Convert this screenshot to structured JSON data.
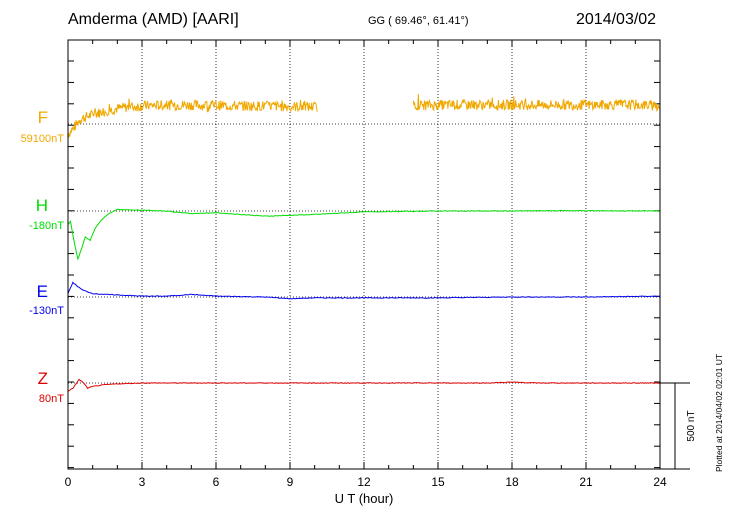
{
  "header": {
    "station": "Amderma (AMD)  [AARI]",
    "coords": "GG ( 69.46°,  61.41°)",
    "date": "2014/03/02"
  },
  "footer": {
    "plotted": "Plotted at 2014/04/02 02:01  UT"
  },
  "chart_data": {
    "type": "line",
    "title": "Amderma (AMD)  [AARI]",
    "xlabel": "U T (hour)",
    "xlim": [
      0,
      24
    ],
    "xticks": [
      0,
      3,
      6,
      9,
      12,
      15,
      18,
      21,
      24
    ],
    "grid": true,
    "scale_bar": {
      "label": "500 nT",
      "value_nT": 500
    },
    "series": [
      {
        "name": "F",
        "baseline": "59100nT",
        "color": "#f0a800",
        "points": [
          [
            0,
            -60
          ],
          [
            0.25,
            -20
          ],
          [
            0.5,
            30
          ],
          [
            1,
            55
          ],
          [
            1.5,
            75
          ],
          [
            2,
            90
          ],
          [
            2.5,
            100
          ],
          [
            3,
            105
          ],
          [
            4,
            110
          ],
          [
            5,
            110
          ],
          [
            6,
            108
          ],
          [
            7,
            105
          ],
          [
            8,
            105
          ],
          [
            9,
            102
          ],
          [
            10,
            100
          ],
          [
            10.1,
            100
          ]
        ],
        "points2": [
          [
            14,
            110
          ],
          [
            15,
            110
          ],
          [
            16,
            112
          ],
          [
            17,
            110
          ],
          [
            18,
            112
          ],
          [
            19,
            110
          ],
          [
            20,
            112
          ],
          [
            21,
            110
          ],
          [
            22,
            112
          ],
          [
            23,
            112
          ],
          [
            24,
            105
          ]
        ],
        "noise_nT": 30,
        "gap": [
          10.1,
          14
        ]
      },
      {
        "name": "H",
        "baseline": "-180nT",
        "color": "#00dd00",
        "points": [
          [
            0,
            -80
          ],
          [
            0.1,
            -60
          ],
          [
            0.25,
            -180
          ],
          [
            0.4,
            -280
          ],
          [
            0.55,
            -220
          ],
          [
            0.7,
            -150
          ],
          [
            0.9,
            -170
          ],
          [
            1.1,
            -100
          ],
          [
            1.3,
            -60
          ],
          [
            1.6,
            -20
          ],
          [
            2,
            10
          ],
          [
            2.5,
            5
          ],
          [
            3,
            5
          ],
          [
            4,
            0
          ],
          [
            5,
            -15
          ],
          [
            6,
            -10
          ],
          [
            7,
            -20
          ],
          [
            8,
            -30
          ],
          [
            9,
            -25
          ],
          [
            10,
            -20
          ],
          [
            12,
            -5
          ],
          [
            15,
            0
          ],
          [
            18,
            0
          ],
          [
            20,
            2
          ],
          [
            24,
            0
          ]
        ]
      },
      {
        "name": "E",
        "baseline": "-130nT",
        "color": "#0000ee",
        "points": [
          [
            0,
            20
          ],
          [
            0.2,
            85
          ],
          [
            0.4,
            60
          ],
          [
            0.6,
            40
          ],
          [
            0.8,
            30
          ],
          [
            1,
            20
          ],
          [
            1.5,
            15
          ],
          [
            2,
            12
          ],
          [
            3,
            5
          ],
          [
            4,
            5
          ],
          [
            5,
            15
          ],
          [
            6,
            5
          ],
          [
            8,
            0
          ],
          [
            9,
            -10
          ],
          [
            10,
            -5
          ],
          [
            12,
            -5
          ],
          [
            15,
            -5
          ],
          [
            18,
            0
          ],
          [
            21,
            0
          ],
          [
            24,
            5
          ]
        ]
      },
      {
        "name": "Z",
        "baseline": "80nT",
        "color": "#dd0000",
        "points": [
          [
            0,
            -50
          ],
          [
            0.2,
            -30
          ],
          [
            0.45,
            20
          ],
          [
            0.6,
            5
          ],
          [
            0.8,
            -30
          ],
          [
            1,
            -20
          ],
          [
            1.5,
            -10
          ],
          [
            2,
            -5
          ],
          [
            3,
            0
          ],
          [
            5,
            0
          ],
          [
            10,
            0
          ],
          [
            15,
            0
          ],
          [
            17,
            0
          ],
          [
            18,
            5
          ],
          [
            19,
            0
          ],
          [
            21,
            0
          ],
          [
            24,
            0
          ]
        ]
      }
    ]
  }
}
